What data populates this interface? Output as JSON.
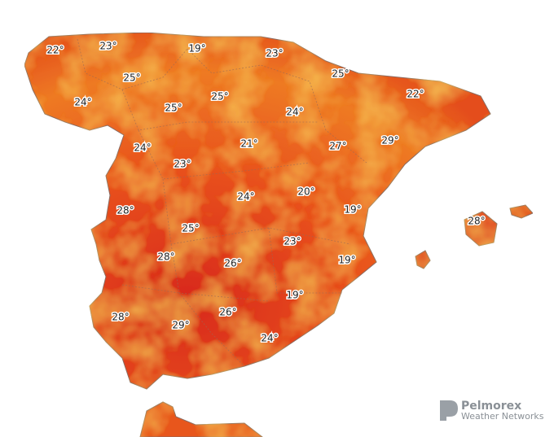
{
  "labels": [
    "22°",
    "23°",
    "19°",
    "23°",
    "25°",
    "25°",
    "24°",
    "25°",
    "25°",
    "24°",
    "22°",
    "24°",
    "21°",
    "27°",
    "29°",
    "23°",
    "24°",
    "20°",
    "19°",
    "28°",
    "25°",
    "23°",
    "28°",
    "26°",
    "19°",
    "19°",
    "28°",
    "26°",
    "29°",
    "24°",
    "28°"
  ],
  "brand": {
    "name": "Pelmorex",
    "subtitle": "Weather Networks"
  }
}
